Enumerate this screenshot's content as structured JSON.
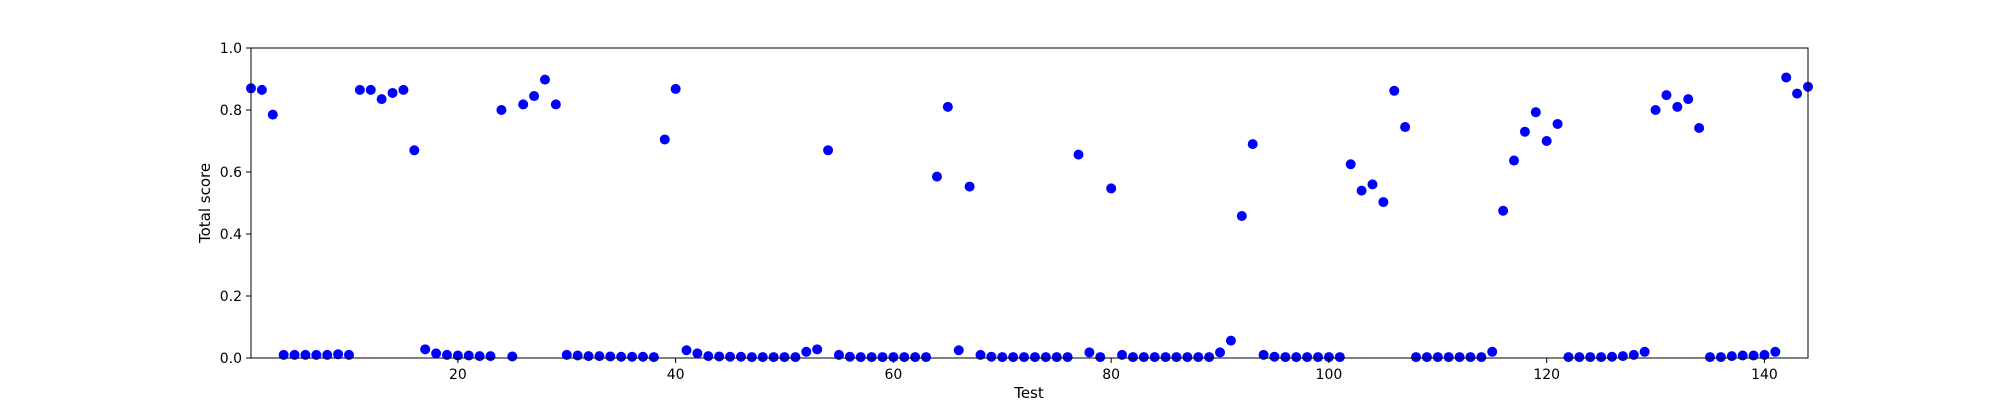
{
  "chart_data": {
    "type": "scatter",
    "title": "",
    "xlabel": "Test",
    "ylabel": "Total score",
    "xlim": [
      1,
      144
    ],
    "ylim": [
      0.0,
      1.0
    ],
    "x_ticks": [
      20,
      40,
      60,
      80,
      100,
      120,
      140
    ],
    "x_tick_labels": [
      "20",
      "40",
      "60",
      "80",
      "100",
      "120",
      "140"
    ],
    "y_ticks": [
      0.0,
      0.2,
      0.4,
      0.6,
      0.8,
      1.0
    ],
    "y_tick_labels": [
      "0.0",
      "0.2",
      "0.4",
      "0.6",
      "0.8",
      "1.0"
    ],
    "grid": false,
    "marker_color": "#0000ff",
    "x": [
      1,
      2,
      3,
      4,
      5,
      6,
      7,
      8,
      9,
      10,
      11,
      12,
      13,
      14,
      15,
      16,
      17,
      18,
      19,
      20,
      21,
      22,
      23,
      24,
      25,
      26,
      27,
      28,
      29,
      30,
      31,
      32,
      33,
      34,
      35,
      36,
      37,
      38,
      39,
      40,
      41,
      42,
      43,
      44,
      45,
      46,
      47,
      48,
      49,
      50,
      51,
      52,
      53,
      54,
      55,
      56,
      57,
      58,
      59,
      60,
      61,
      62,
      63,
      64,
      65,
      66,
      67,
      68,
      69,
      70,
      71,
      72,
      73,
      74,
      75,
      76,
      77,
      78,
      79,
      80,
      81,
      82,
      83,
      84,
      85,
      86,
      87,
      88,
      89,
      90,
      91,
      92,
      93,
      94,
      95,
      96,
      97,
      98,
      99,
      100,
      101,
      102,
      103,
      104,
      105,
      106,
      107,
      108,
      109,
      110,
      111,
      112,
      113,
      114,
      115,
      116,
      117,
      118,
      119,
      120,
      121,
      122,
      123,
      124,
      125,
      126,
      127,
      128,
      129,
      130,
      131,
      132,
      133,
      134,
      135,
      136,
      137,
      138,
      139,
      140,
      141,
      142,
      143,
      144
    ],
    "y": [
      0.87,
      0.865,
      0.785,
      0.01,
      0.01,
      0.01,
      0.01,
      0.01,
      0.012,
      0.01,
      0.865,
      0.865,
      0.835,
      0.855,
      0.865,
      0.67,
      0.028,
      0.015,
      0.01,
      0.008,
      0.008,
      0.006,
      0.006,
      0.8,
      0.005,
      0.818,
      0.845,
      0.898,
      0.818,
      0.01,
      0.008,
      0.006,
      0.006,
      0.005,
      0.004,
      0.004,
      0.004,
      0.003,
      0.705,
      0.868,
      0.025,
      0.015,
      0.006,
      0.005,
      0.004,
      0.004,
      0.003,
      0.003,
      0.003,
      0.003,
      0.003,
      0.02,
      0.028,
      0.67,
      0.01,
      0.004,
      0.003,
      0.003,
      0.003,
      0.003,
      0.003,
      0.003,
      0.003,
      0.585,
      0.81,
      0.025,
      0.553,
      0.01,
      0.004,
      0.003,
      0.003,
      0.003,
      0.003,
      0.003,
      0.003,
      0.003,
      0.656,
      0.018,
      0.003,
      0.547,
      0.01,
      0.003,
      0.003,
      0.003,
      0.003,
      0.003,
      0.003,
      0.003,
      0.003,
      0.018,
      0.056,
      0.458,
      0.69,
      0.01,
      0.004,
      0.003,
      0.003,
      0.003,
      0.003,
      0.003,
      0.003,
      0.625,
      0.54,
      0.56,
      0.503,
      0.862,
      0.745,
      0.003,
      0.003,
      0.003,
      0.003,
      0.003,
      0.003,
      0.003,
      0.02,
      0.475,
      0.637,
      0.73,
      0.793,
      0.7,
      0.755,
      0.003,
      0.003,
      0.003,
      0.003,
      0.004,
      0.006,
      0.01,
      0.02,
      0.8,
      0.848,
      0.81,
      0.835,
      0.742,
      0.003,
      0.003,
      0.006,
      0.008,
      0.008,
      0.01,
      0.02,
      0.905,
      0.853,
      0.875
    ]
  }
}
